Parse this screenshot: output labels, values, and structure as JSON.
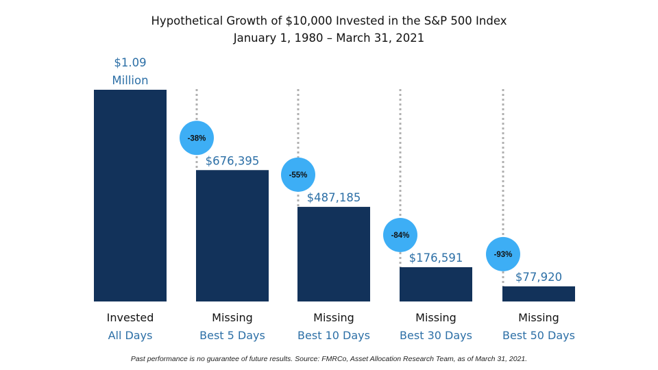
{
  "title": "Hypothetical Growth of $10,000 Invested in the S&P 500 Index",
  "subtitle": "January 1, 1980 – March 31, 2021",
  "footnote": "Past performance is no guarantee of future results. Source: FMRCo, Asset Allocation Research Team, as of March 31, 2021.",
  "colors": {
    "bar": "#12325a",
    "value_label": "#2c6fa6",
    "badge": "#3daef5",
    "dotted_line": "#b0b0b0",
    "category_line1": "#111111",
    "category_line2": "#2c6fa6"
  },
  "chart_data": {
    "type": "bar",
    "title": "Hypothetical Growth of $10,000 Invested in the S&P 500 Index",
    "subtitle": "January 1, 1980 – March 31, 2021",
    "categories": [
      [
        "Invested",
        "All Days"
      ],
      [
        "Missing",
        "Best 5 Days"
      ],
      [
        "Missing",
        "Best 10 Days"
      ],
      [
        "Missing",
        "Best 30 Days"
      ],
      [
        "Missing",
        "Best 50 Days"
      ]
    ],
    "values": [
      1090000,
      676395,
      487185,
      176591,
      77920
    ],
    "value_labels": [
      [
        "$1.09",
        "Million"
      ],
      [
        "$676,395"
      ],
      [
        "$487,185"
      ],
      [
        "$176,591"
      ],
      [
        "$77,920"
      ]
    ],
    "badges": [
      null,
      "-38%",
      "-55%",
      "-84%",
      "-93%"
    ],
    "ylim": [
      0,
      1090000
    ],
    "grid": false,
    "legend": "none"
  }
}
